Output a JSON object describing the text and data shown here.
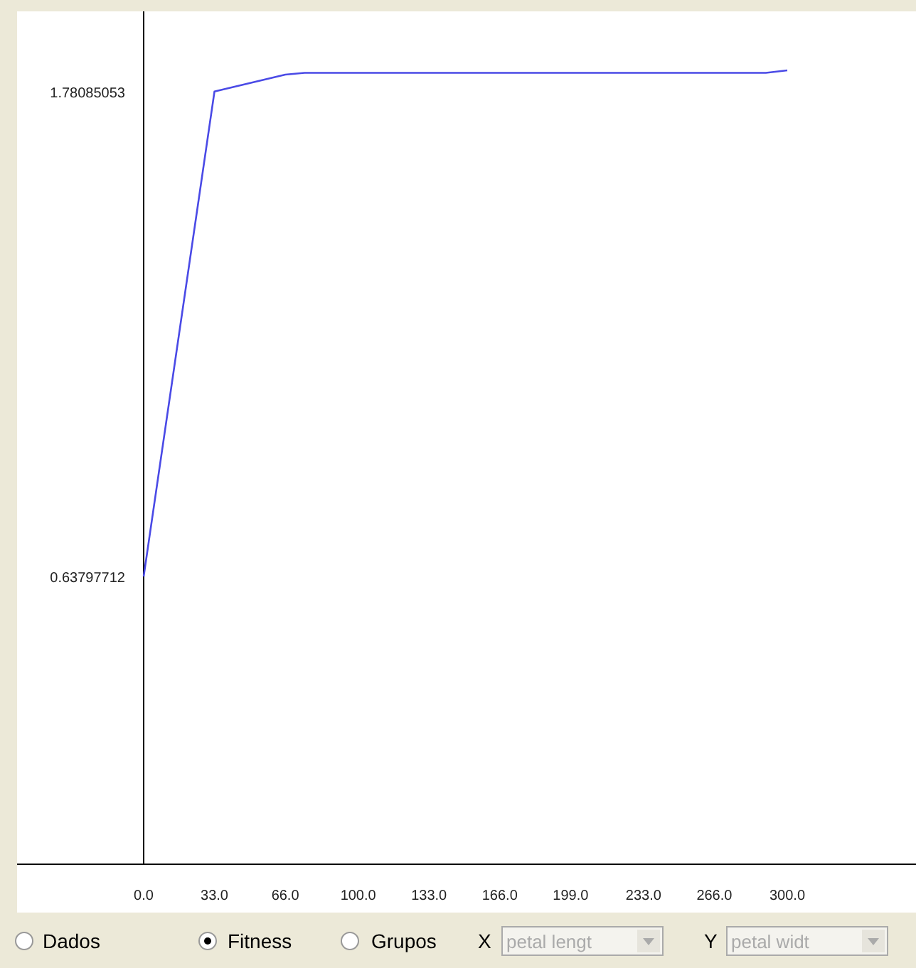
{
  "chart_data": {
    "type": "line",
    "x": [
      0,
      33,
      66,
      75,
      290,
      300
    ],
    "series": [
      {
        "color": "#4a4ae6",
        "values": [
          0.638,
          1.781,
          1.821,
          1.825,
          1.825,
          1.831
        ]
      }
    ],
    "xlim": [
      0,
      360
    ],
    "ylim": [
      -0.04,
      1.97
    ],
    "xticks": [
      {
        "value": 0,
        "label": "0.0"
      },
      {
        "value": 33,
        "label": "33.0"
      },
      {
        "value": 66,
        "label": "66.0"
      },
      {
        "value": 100,
        "label": "100.0"
      },
      {
        "value": 133,
        "label": "133.0"
      },
      {
        "value": 166,
        "label": "166.0"
      },
      {
        "value": 199,
        "label": "199.0"
      },
      {
        "value": 233,
        "label": "233.0"
      },
      {
        "value": 266,
        "label": "266.0"
      },
      {
        "value": 300,
        "label": "300.0"
      }
    ],
    "yticks": [
      {
        "value": 0.63797712,
        "label": "0.63797712"
      },
      {
        "value": 1.78085053,
        "label": "1.78085053"
      }
    ],
    "grid": false,
    "marker": "none",
    "line_style": "solid",
    "annotations": [
      "Dados",
      "Fitness",
      "Grupos",
      "X",
      "petal lengt",
      "Y",
      "petal widt"
    ]
  }
}
